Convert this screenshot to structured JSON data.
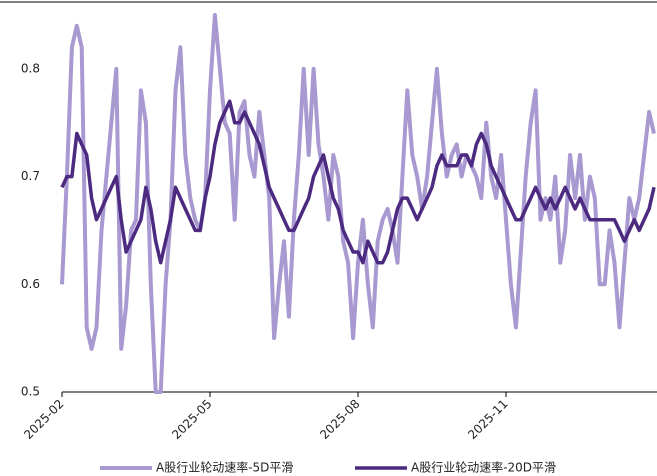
{
  "chart_data": {
    "type": "line",
    "categories": [
      "2025-02",
      null,
      null,
      null,
      null,
      null,
      null,
      null,
      null,
      null,
      null,
      null,
      null,
      null,
      null,
      null,
      null,
      null,
      null,
      null,
      null,
      null,
      null,
      null,
      null,
      null,
      null,
      null,
      null,
      null,
      "2025-05",
      null,
      null,
      null,
      null,
      null,
      null,
      null,
      null,
      null,
      null,
      null,
      null,
      null,
      null,
      null,
      null,
      null,
      null,
      null,
      null,
      null,
      null,
      null,
      null,
      null,
      null,
      null,
      null,
      null,
      "2025-08",
      null,
      null,
      null,
      null,
      null,
      null,
      null,
      null,
      null,
      null,
      null,
      null,
      null,
      null,
      null,
      null,
      null,
      null,
      null,
      null,
      null,
      null,
      null,
      null,
      null,
      null,
      null,
      null,
      null,
      "2025-11",
      null,
      null,
      null,
      null,
      null,
      null,
      null,
      null,
      null,
      null,
      null,
      null,
      null,
      null,
      null,
      null,
      null,
      null,
      null,
      null,
      null,
      null,
      null,
      null,
      null,
      null,
      null,
      null,
      null,
      null
    ],
    "series": [
      {
        "name": "A股行业轮动速率-5D平滑",
        "color": "#a899d1",
        "width": 4,
        "values": [
          0.6,
          0.7,
          0.82,
          0.84,
          0.82,
          0.56,
          0.54,
          0.56,
          0.65,
          0.7,
          0.75,
          0.8,
          0.54,
          0.58,
          0.65,
          0.66,
          0.78,
          0.75,
          0.6,
          0.5,
          0.5,
          0.6,
          0.66,
          0.78,
          0.82,
          0.72,
          0.68,
          0.66,
          0.65,
          0.68,
          0.78,
          0.85,
          0.8,
          0.75,
          0.74,
          0.66,
          0.76,
          0.77,
          0.72,
          0.7,
          0.76,
          0.72,
          0.68,
          0.55,
          0.6,
          0.64,
          0.57,
          0.66,
          0.72,
          0.8,
          0.72,
          0.8,
          0.73,
          0.7,
          0.66,
          0.72,
          0.7,
          0.64,
          0.62,
          0.55,
          0.62,
          0.66,
          0.6,
          0.56,
          0.64,
          0.66,
          0.67,
          0.65,
          0.62,
          0.7,
          0.78,
          0.72,
          0.7,
          0.67,
          0.7,
          0.75,
          0.8,
          0.74,
          0.7,
          0.72,
          0.73,
          0.7,
          0.72,
          0.71,
          0.7,
          0.68,
          0.75,
          0.7,
          0.68,
          0.72,
          0.66,
          0.6,
          0.56,
          0.63,
          0.7,
          0.75,
          0.78,
          0.66,
          0.68,
          0.66,
          0.7,
          0.62,
          0.65,
          0.72,
          0.68,
          0.72,
          0.66,
          0.7,
          0.68,
          0.6,
          0.6,
          0.65,
          0.62,
          0.56,
          0.62,
          0.68,
          0.66,
          0.68,
          0.72,
          0.76,
          0.74
        ]
      },
      {
        "name": "A股行业轮动速率-20D平滑",
        "color": "#4b2a80",
        "width": 3.5,
        "values": [
          0.69,
          0.7,
          0.7,
          0.74,
          0.73,
          0.72,
          0.68,
          0.66,
          0.67,
          0.68,
          0.69,
          0.7,
          0.66,
          0.63,
          0.64,
          0.65,
          0.66,
          0.69,
          0.67,
          0.64,
          0.62,
          0.64,
          0.66,
          0.69,
          0.68,
          0.67,
          0.66,
          0.65,
          0.65,
          0.68,
          0.7,
          0.73,
          0.75,
          0.76,
          0.77,
          0.75,
          0.75,
          0.76,
          0.75,
          0.74,
          0.73,
          0.71,
          0.69,
          0.68,
          0.67,
          0.66,
          0.65,
          0.65,
          0.66,
          0.67,
          0.68,
          0.7,
          0.71,
          0.72,
          0.7,
          0.68,
          0.67,
          0.65,
          0.64,
          0.63,
          0.63,
          0.62,
          0.64,
          0.63,
          0.62,
          0.62,
          0.63,
          0.65,
          0.67,
          0.68,
          0.68,
          0.67,
          0.66,
          0.67,
          0.68,
          0.69,
          0.71,
          0.72,
          0.71,
          0.71,
          0.71,
          0.72,
          0.72,
          0.71,
          0.73,
          0.74,
          0.73,
          0.71,
          0.7,
          0.69,
          0.68,
          0.67,
          0.66,
          0.66,
          0.67,
          0.68,
          0.69,
          0.68,
          0.67,
          0.68,
          0.67,
          0.68,
          0.69,
          0.68,
          0.67,
          0.68,
          0.67,
          0.66,
          0.66,
          0.66,
          0.66,
          0.66,
          0.66,
          0.65,
          0.64,
          0.65,
          0.66,
          0.65,
          0.66,
          0.67,
          0.69
        ]
      }
    ],
    "ylim": [
      0.5,
      0.85
    ],
    "yticks": [
      0.5,
      0.6,
      0.7,
      0.8
    ],
    "grid": false
  }
}
